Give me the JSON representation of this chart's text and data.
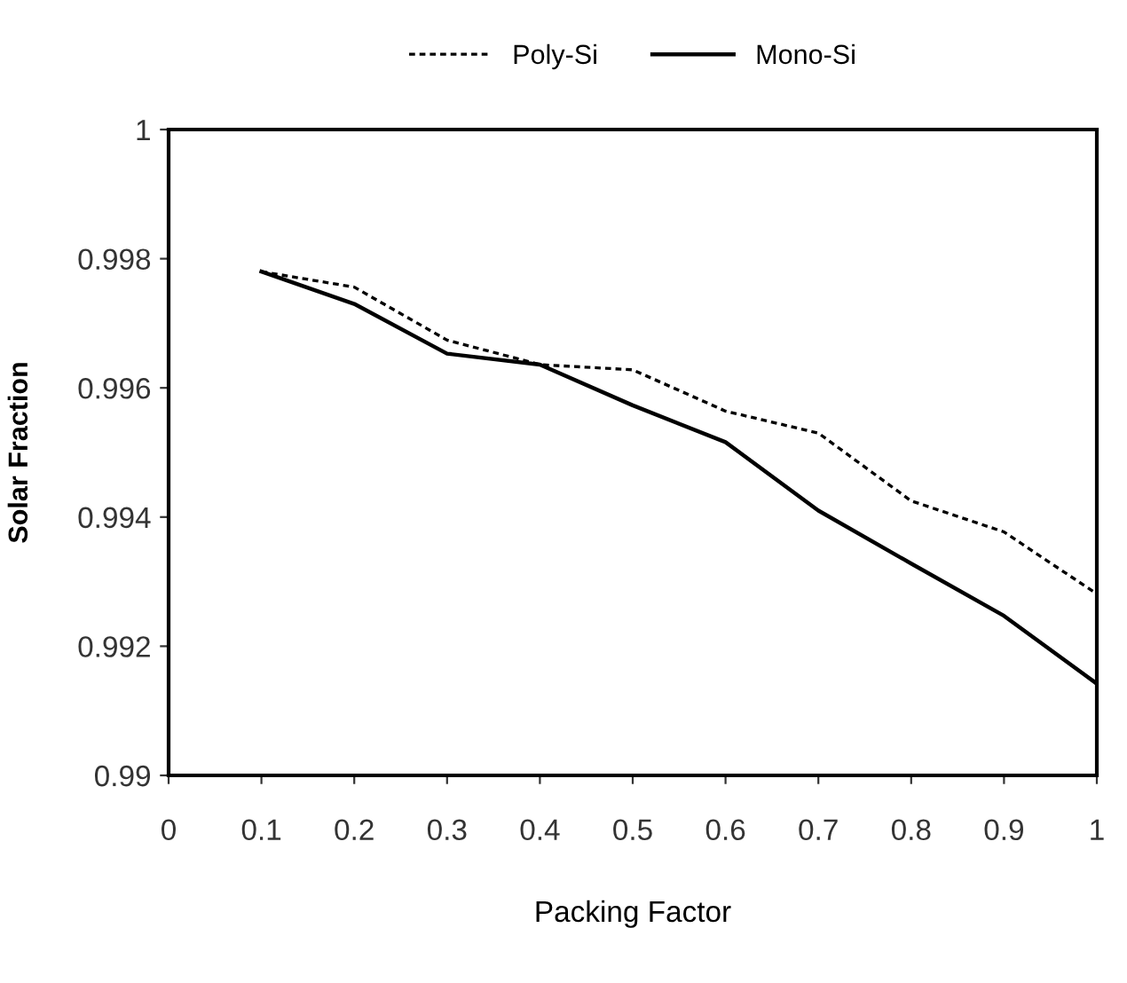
{
  "chart_data": {
    "type": "line",
    "xlabel": "Packing Factor",
    "ylabel": "Solar Fraction",
    "x": [
      0.1,
      0.2,
      0.3,
      0.4,
      0.5,
      0.6,
      0.7,
      0.8,
      0.9,
      1.0
    ],
    "series": [
      {
        "name": "Poly-Si",
        "color": "#000000",
        "line_style": "dashed",
        "values": [
          0.9978,
          0.99756,
          0.99674,
          0.99636,
          0.99628,
          0.99564,
          0.9953,
          0.99425,
          0.99377,
          0.99281
        ]
      },
      {
        "name": "Mono-Si",
        "color": "#000000",
        "line_style": "solid",
        "values": [
          0.9978,
          0.9973,
          0.99653,
          0.99636,
          0.99573,
          0.99516,
          0.9941,
          0.99328,
          0.99247,
          0.99142
        ]
      }
    ],
    "xlim": [
      0,
      1
    ],
    "xticks": [
      0,
      0.1,
      0.2,
      0.3,
      0.4,
      0.5,
      0.6,
      0.7,
      0.8,
      0.9,
      1
    ],
    "ylim": [
      0.99,
      1
    ],
    "yticks": [
      0.99,
      0.992,
      0.994,
      0.996,
      0.998,
      1
    ],
    "grid": false,
    "legend": "top",
    "marker": "none"
  }
}
